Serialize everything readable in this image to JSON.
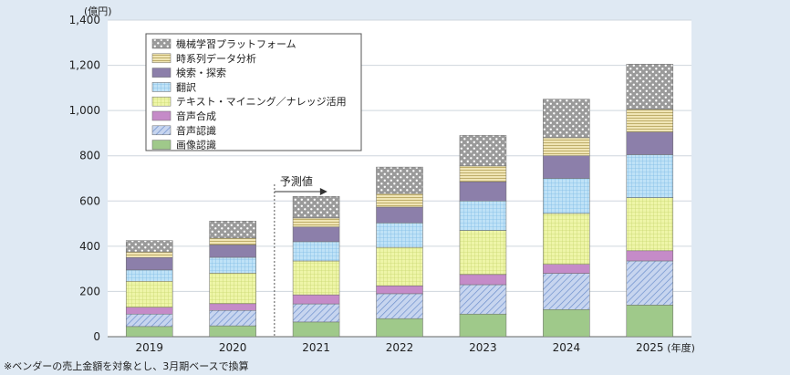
{
  "chart_data": {
    "type": "bar",
    "stacked": true,
    "y_unit_label": "(億円)",
    "x_unit_label": "(年度)",
    "categories": [
      "2019",
      "2020",
      "2021",
      "2022",
      "2023",
      "2024",
      "2025"
    ],
    "ylim": [
      0,
      1400
    ],
    "yticks": [
      0,
      200,
      400,
      600,
      800,
      1000,
      1200,
      1400
    ],
    "ytick_labels": [
      "0",
      "200",
      "400",
      "600",
      "800",
      "1,000",
      "1,200",
      "1,400"
    ],
    "grid": true,
    "legend_position": "top-left",
    "forecast_label": "予測値",
    "forecast_start_category": "2021",
    "series": [
      {
        "name": "画像認識",
        "values": [
          45,
          48,
          65,
          80,
          100,
          120,
          140
        ],
        "color": "#9fc98a",
        "pattern": "solid"
      },
      {
        "name": "音声認識",
        "values": [
          55,
          68,
          80,
          110,
          130,
          160,
          195
        ],
        "color": "#9fb6e0",
        "pattern": "diagonal"
      },
      {
        "name": "音声合成",
        "values": [
          30,
          30,
          40,
          35,
          45,
          40,
          45
        ],
        "color": "#c58bc8",
        "pattern": "solid"
      },
      {
        "name": "テキスト・マイニング／ナレッジ活用",
        "values": [
          115,
          135,
          150,
          170,
          195,
          225,
          235
        ],
        "color": "#e9f29a",
        "pattern": "grid"
      },
      {
        "name": "翻訳",
        "values": [
          50,
          70,
          85,
          108,
          130,
          155,
          190
        ],
        "color": "#a7d3f2",
        "pattern": "grid"
      },
      {
        "name": "検索・探索",
        "values": [
          55,
          55,
          65,
          70,
          85,
          100,
          100
        ],
        "color": "#8c7faa",
        "pattern": "solid"
      },
      {
        "name": "時系列データ分析",
        "values": [
          25,
          30,
          40,
          60,
          70,
          80,
          100
        ],
        "color": "#e3d69b",
        "pattern": "hstripe"
      },
      {
        "name": "機械学習プラットフォーム",
        "values": [
          50,
          75,
          95,
          117,
          135,
          170,
          200
        ],
        "color": "#a7a7a7",
        "pattern": "dots"
      }
    ]
  },
  "footnote": "※ベンダーの売上金額を対象とし、3月期ベースで換算"
}
